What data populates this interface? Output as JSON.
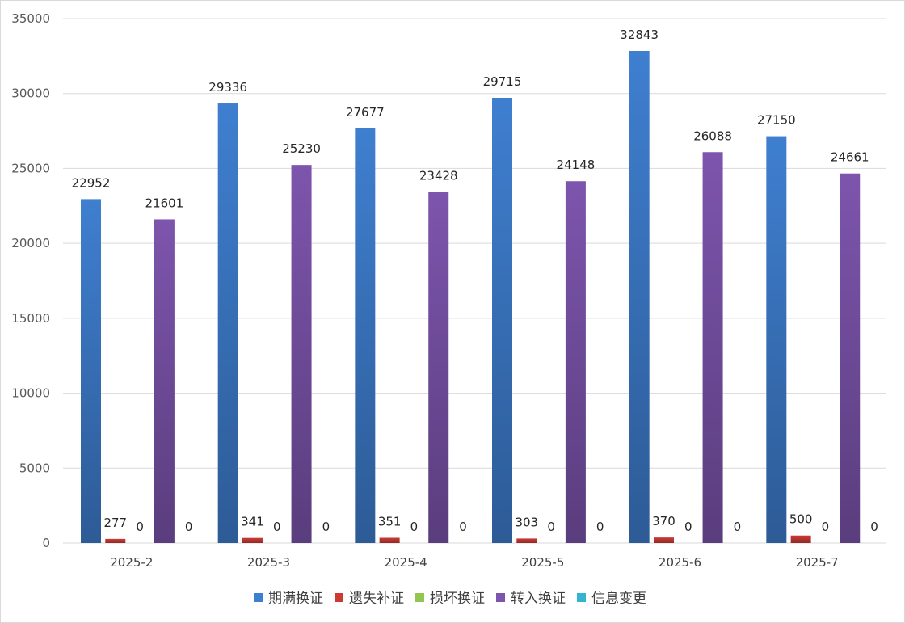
{
  "colors": {
    "期满换证": "#3f7fd0",
    "遗失补证": "#cc3a35",
    "损坏换证": "#92c650",
    "转入换证": "#7d55ad",
    "信息变更": "#33b5d2",
    "grid": "#d9d9d9"
  },
  "chart_data": {
    "type": "bar",
    "title": "",
    "xlabel": "",
    "ylabel": "",
    "ylim": [
      0,
      35000
    ],
    "y_ticks": [
      "0",
      "5000",
      "10000",
      "15000",
      "20000",
      "25000",
      "30000",
      "35000"
    ],
    "grid": true,
    "legend_position": "bottom",
    "categories": [
      "2025-2",
      "2025-3",
      "2025-4",
      "2025-5",
      "2025-6",
      "2025-7"
    ],
    "series": [
      {
        "name": "期满换证",
        "values": [
          22952,
          29336,
          27677,
          29715,
          32843,
          27150
        ],
        "labels": [
          "22952",
          "29336",
          "27677",
          "29715",
          "32843",
          "27150"
        ]
      },
      {
        "name": "遗失补证",
        "values": [
          277,
          341,
          351,
          303,
          370,
          500
        ],
        "labels": [
          "277",
          "341",
          "351",
          "303",
          "370",
          "500"
        ]
      },
      {
        "name": "损坏换证",
        "values": [
          0,
          0,
          0,
          0,
          0,
          0
        ],
        "labels": [
          "0",
          "0",
          "0",
          "0",
          "0",
          "0"
        ]
      },
      {
        "name": "转入换证",
        "values": [
          21601,
          25230,
          23428,
          24148,
          26088,
          24661
        ],
        "labels": [
          "21601",
          "25230",
          "23428",
          "24148",
          "26088",
          "24661"
        ]
      },
      {
        "name": "信息变更",
        "values": [
          0,
          0,
          0,
          0,
          0,
          0
        ],
        "labels": [
          "0",
          "0",
          "0",
          "0",
          "0",
          "0"
        ]
      }
    ]
  }
}
